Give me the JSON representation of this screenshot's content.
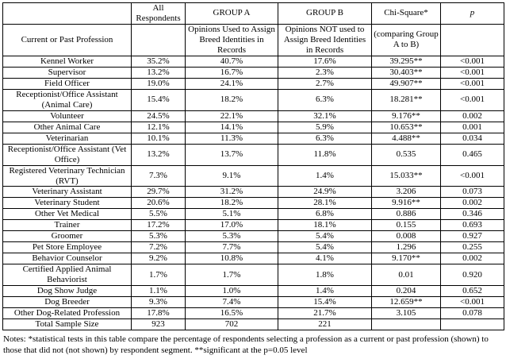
{
  "table": {
    "header_row1": {
      "profession": "",
      "all": "All Respondents",
      "group_a": "GROUP A",
      "group_b": "GROUP B",
      "chi_square": "Chi-Square*",
      "p": "p"
    },
    "header_row2": {
      "profession": "Current or Past Profession",
      "all": "",
      "group_a": "Opinions Used to Assign Breed Identities in Records",
      "group_b": "Opinions NOT used to Assign Breed Identities in Records",
      "chi_square": "(comparing Group A to B)",
      "p": ""
    },
    "rows": [
      {
        "profession": "Kennel Worker",
        "all": "35.2%",
        "group_a": "40.7%",
        "group_b": "17.6%",
        "chi_square": "39.295**",
        "p": "<0.001"
      },
      {
        "profession": "Supervisor",
        "all": "13.2%",
        "group_a": "16.7%",
        "group_b": "2.3%",
        "chi_square": "30.403**",
        "p": "<0.001"
      },
      {
        "profession": "Field Officer",
        "all": "19.0%",
        "group_a": "24.1%",
        "group_b": "2.7%",
        "chi_square": "49.907**",
        "p": "<0.001"
      },
      {
        "profession": "Receptionist/Office Assistant (Animal Care)",
        "all": "15.4%",
        "group_a": "18.2%",
        "group_b": "6.3%",
        "chi_square": "18.281**",
        "p": "<0.001"
      },
      {
        "profession": "Volunteer",
        "all": "24.5%",
        "group_a": "22.1%",
        "group_b": "32.1%",
        "chi_square": "9.176**",
        "p": "0.002"
      },
      {
        "profession": "Other Animal Care",
        "all": "12.1%",
        "group_a": "14.1%",
        "group_b": "5.9%",
        "chi_square": "10.653**",
        "p": "0.001"
      },
      {
        "profession": "Veterinarian",
        "all": "10.1%",
        "group_a": "11.3%",
        "group_b": "6.3%",
        "chi_square": "4.488**",
        "p": "0.034"
      },
      {
        "profession": "Receptionist/Office Assistant (Vet Office)",
        "all": "13.2%",
        "group_a": "13.7%",
        "group_b": "11.8%",
        "chi_square": "0.535",
        "p": "0.465"
      },
      {
        "profession": "Registered Veterinary Technician (RVT)",
        "all": "7.3%",
        "group_a": "9.1%",
        "group_b": "1.4%",
        "chi_square": "15.033**",
        "p": "<0.001"
      },
      {
        "profession": "Veterinary Assistant",
        "all": "29.7%",
        "group_a": "31.2%",
        "group_b": "24.9%",
        "chi_square": "3.206",
        "p": "0.073"
      },
      {
        "profession": "Veterinary Student",
        "all": "20.6%",
        "group_a": "18.2%",
        "group_b": "28.1%",
        "chi_square": "9.916**",
        "p": "0.002"
      },
      {
        "profession": "Other Vet Medical",
        "all": "5.5%",
        "group_a": "5.1%",
        "group_b": "6.8%",
        "chi_square": "0.886",
        "p": "0.346"
      },
      {
        "profession": "Trainer",
        "all": "17.2%",
        "group_a": "17.0%",
        "group_b": "18.1%",
        "chi_square": "0.155",
        "p": "0.693"
      },
      {
        "profession": "Groomer",
        "all": "5.3%",
        "group_a": "5.3%",
        "group_b": "5.4%",
        "chi_square": "0.008",
        "p": "0.927"
      },
      {
        "profession": "Pet Store Employee",
        "all": "7.2%",
        "group_a": "7.7%",
        "group_b": "5.4%",
        "chi_square": "1.296",
        "p": "0.255"
      },
      {
        "profession": "Behavior Counselor",
        "all": "9.2%",
        "group_a": "10.8%",
        "group_b": "4.1%",
        "chi_square": "9.170**",
        "p": "0.002"
      },
      {
        "profession": "Certified Applied Animal Behaviorist",
        "all": "1.7%",
        "group_a": "1.7%",
        "group_b": "1.8%",
        "chi_square": "0.01",
        "p": "0.920"
      },
      {
        "profession": "Dog Show Judge",
        "all": "1.1%",
        "group_a": "1.0%",
        "group_b": "1.4%",
        "chi_square": "0.204",
        "p": "0.652"
      },
      {
        "profession": "Dog Breeder",
        "all": "9.3%",
        "group_a": "7.4%",
        "group_b": "15.4%",
        "chi_square": "12.659**",
        "p": "<0.001"
      },
      {
        "profession": "Other Dog-Related Profession",
        "all": "17.8%",
        "group_a": "16.5%",
        "group_b": "21.7%",
        "chi_square": "3.105",
        "p": "0.078"
      },
      {
        "profession": "Total Sample Size",
        "all": "923",
        "group_a": "702",
        "group_b": "221",
        "chi_square": "",
        "p": ""
      }
    ]
  },
  "notes": "Notes: *statistical tests in this table compare the percentage  of respondents selecting a profession as a current  or past profession (shown) to those that did not (not shown) by respondent segment.  **significant at the p=0.05 level"
}
